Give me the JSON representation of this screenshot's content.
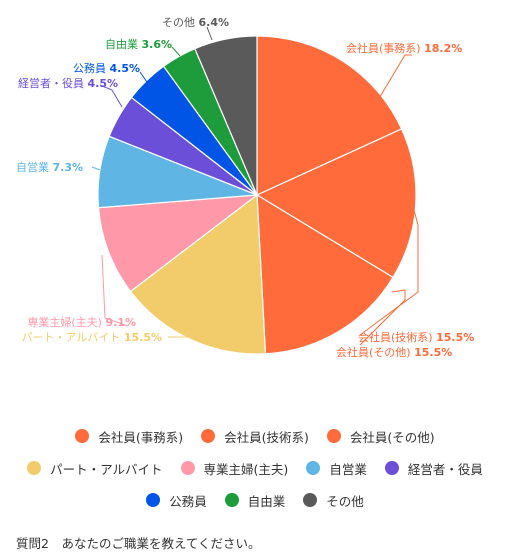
{
  "chart_data": {
    "type": "pie",
    "slices": [
      {
        "name": "会社員(事務系)",
        "value": 18.2,
        "value_label": "18.2%",
        "color": "#ff6b3a"
      },
      {
        "name": "会社員(技術系)",
        "value": 15.5,
        "value_label": "15.5%",
        "color": "#ff6b3a"
      },
      {
        "name": "会社員(その他)",
        "value": 15.5,
        "value_label": "15.5%",
        "color": "#ff6b3a"
      },
      {
        "name": "パート・アルバイト",
        "value": 15.5,
        "value_label": "15.5%",
        "color": "#f2cc6b"
      },
      {
        "name": "専業主婦(主夫)",
        "value": 9.1,
        "value_label": "9.1%",
        "color": "#ff99aa"
      },
      {
        "name": "自営業",
        "value": 7.3,
        "value_label": "7.3%",
        "color": "#5fb6e4"
      },
      {
        "name": "経営者・役員",
        "value": 4.5,
        "value_label": "4.5%",
        "color": "#6b4fd8"
      },
      {
        "name": "公務員",
        "value": 4.5,
        "value_label": "4.5%",
        "color": "#0055e6"
      },
      {
        "name": "自由業",
        "value": 3.6,
        "value_label": "3.6%",
        "color": "#1e9b3a"
      },
      {
        "name": "その他",
        "value": 6.4,
        "value_label": "6.4%",
        "color": "#5a5a5a"
      }
    ],
    "legend_position": "bottom",
    "start_angle": "12 o'clock",
    "direction": "clockwise"
  },
  "legend_rows": [
    [
      0,
      1,
      2
    ],
    [
      3,
      4,
      5,
      6
    ],
    [
      7,
      8,
      9
    ]
  ],
  "caption": "質問2　あなたのご職業を教えてください。"
}
